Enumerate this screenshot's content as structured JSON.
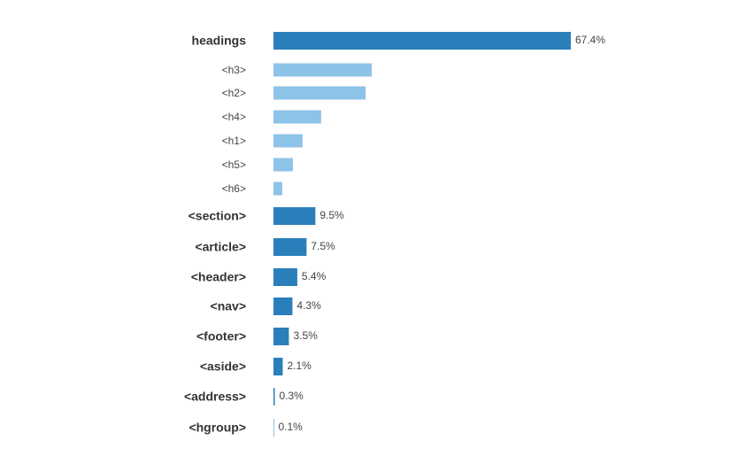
{
  "chart_data": {
    "type": "bar",
    "orientation": "horizontal",
    "categories": [
      "headings",
      "<h3>",
      "<h2>",
      "<h4>",
      "<h1>",
      "<h5>",
      "<h6>",
      "<section>",
      "<article>",
      "<header>",
      "<nav>",
      "<footer>",
      "<aside>",
      "<address>",
      "<hgroup>"
    ],
    "values": [
      67.4,
      22.3,
      20.9,
      10.8,
      6.6,
      4.4,
      2.0,
      9.5,
      7.5,
      5.4,
      4.3,
      3.5,
      2.1,
      0.3,
      0.1
    ],
    "value_labels": [
      "67.4%",
      null,
      null,
      null,
      null,
      null,
      null,
      "9.5%",
      "7.5%",
      "5.4%",
      "4.3%",
      "3.5%",
      "2.1%",
      "0.3%",
      "0.1%"
    ],
    "colors": [
      "#2a7fba",
      "#8ec3e8",
      "#8ec3e8",
      "#8ec3e8",
      "#8ec3e8",
      "#8ec3e8",
      "#8ec3e8",
      "#2a7fba",
      "#2a7fba",
      "#2a7fba",
      "#2a7fba",
      "#2a7fba",
      "#2a7fba",
      "#2a7fba",
      "#2a7fba"
    ]
  }
}
